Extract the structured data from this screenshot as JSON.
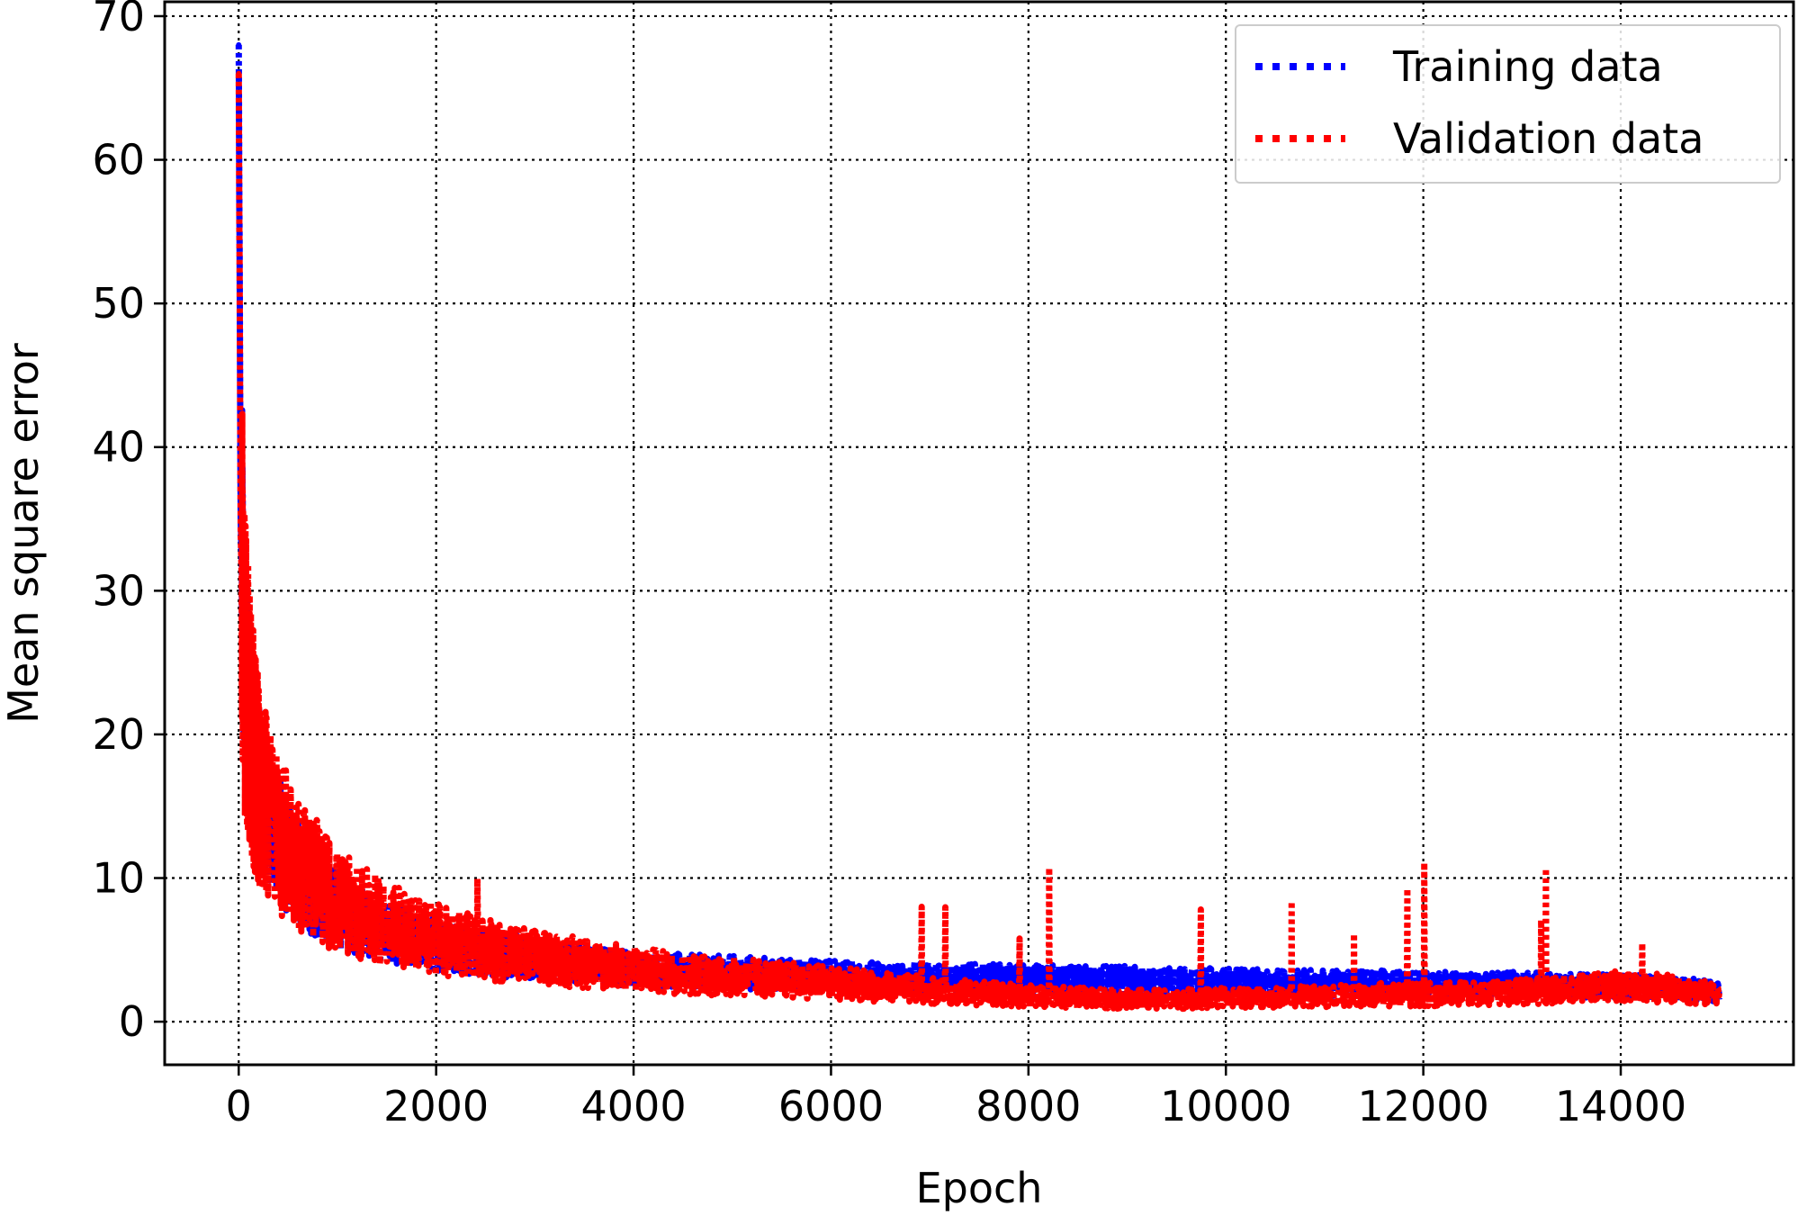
{
  "chart_data": {
    "type": "line",
    "title": "",
    "xlabel": "Epoch",
    "ylabel": "Mean square error",
    "xlim": [
      -750,
      15750
    ],
    "ylim": [
      -3,
      71
    ],
    "xticks": [
      0,
      2000,
      4000,
      6000,
      8000,
      10000,
      12000,
      14000
    ],
    "xtick_labels": [
      "0",
      "2000",
      "4000",
      "6000",
      "8000",
      "10000",
      "12000",
      "14000"
    ],
    "yticks": [
      0,
      10,
      20,
      30,
      40,
      50,
      60,
      70
    ],
    "ytick_labels": [
      "0",
      "10",
      "20",
      "30",
      "40",
      "50",
      "60",
      "70"
    ],
    "grid": true,
    "legend_position": "top-right",
    "series": [
      {
        "name": "Training data",
        "color": "#0000ff",
        "line_style": "dotted",
        "x": [
          0,
          20,
          50,
          100,
          150,
          200,
          300,
          500,
          700,
          1000,
          1500,
          2000,
          2500,
          3000,
          3500,
          4000,
          4500,
          5000,
          5500,
          6000,
          6500,
          7000,
          7500,
          8000,
          8500,
          9000,
          9500,
          10000,
          10500,
          11000,
          11500,
          12000,
          12500,
          13000,
          13500,
          14000,
          14500,
          15000
        ],
        "y": [
          68,
          35,
          26,
          21,
          18,
          16,
          14,
          11,
          9,
          7.5,
          6,
          5.2,
          4.6,
          4.2,
          3.9,
          3.6,
          3.4,
          3.3,
          3.2,
          3.1,
          3.0,
          3.0,
          2.9,
          2.9,
          2.8,
          2.8,
          2.7,
          2.7,
          2.6,
          2.6,
          2.6,
          2.5,
          2.5,
          2.5,
          2.4,
          2.4,
          2.3,
          2.0
        ]
      },
      {
        "name": "Validation data",
        "color": "#ff0000",
        "line_style": "dotted",
        "x": [
          0,
          20,
          50,
          100,
          150,
          200,
          300,
          500,
          700,
          1000,
          1500,
          2000,
          2500,
          3000,
          3500,
          4000,
          4500,
          5000,
          5500,
          6000,
          6500,
          7000,
          7500,
          8000,
          8500,
          9000,
          9500,
          10000,
          10500,
          11000,
          11500,
          12000,
          12500,
          13000,
          13500,
          14000,
          14500,
          15000
        ],
        "y": [
          66,
          34,
          25,
          21,
          18,
          16,
          14,
          11.5,
          10,
          8,
          6.5,
          5.5,
          4.8,
          4.3,
          3.9,
          3.5,
          3.2,
          3.0,
          2.8,
          2.6,
          2.3,
          2.1,
          1.9,
          1.7,
          1.6,
          1.5,
          1.5,
          1.6,
          1.6,
          1.7,
          1.8,
          1.8,
          1.9,
          2.0,
          2.2,
          2.4,
          2.2,
          1.8
        ]
      }
    ]
  }
}
